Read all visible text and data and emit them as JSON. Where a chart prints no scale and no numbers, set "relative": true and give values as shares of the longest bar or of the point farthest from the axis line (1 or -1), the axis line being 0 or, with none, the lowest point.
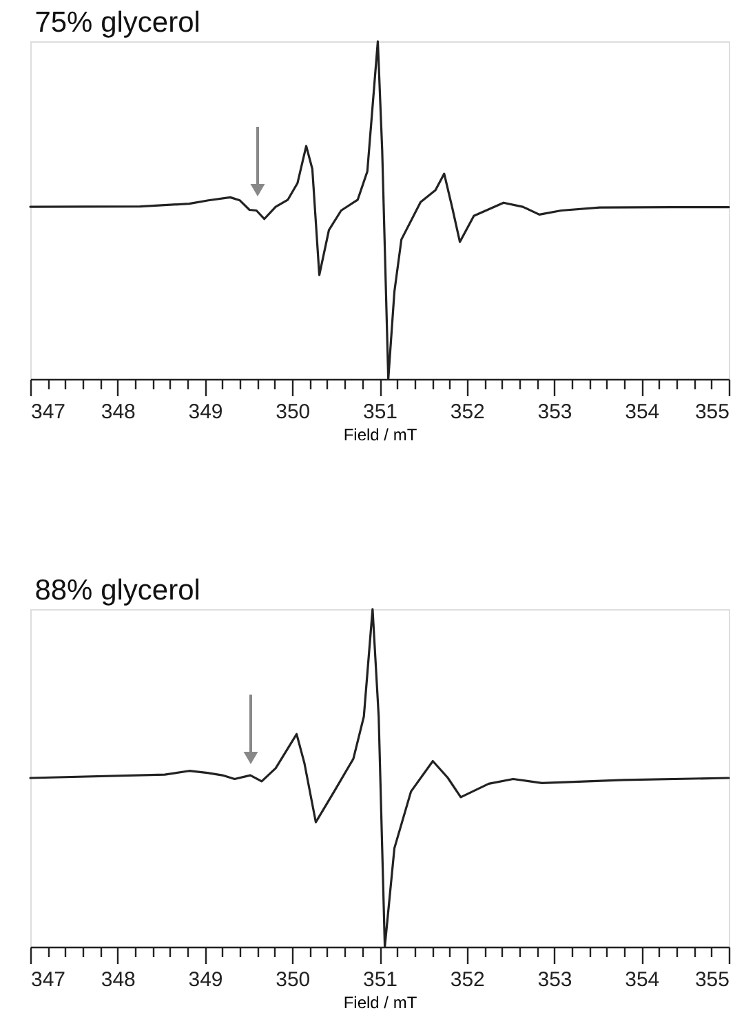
{
  "chart_data": [
    {
      "type": "line",
      "title": "75% glycerol",
      "xlabel": "Field / mT",
      "relative": true,
      "xlim": [
        347,
        355
      ],
      "xticks": [
        347,
        {
          "value": 347.2,
          "label": null
        },
        {
          "value": 347.4,
          "label": null
        },
        {
          "value": 347.6,
          "label": null
        },
        {
          "value": 347.8,
          "label": null
        },
        348,
        {
          "value": 348.2,
          "label": null
        },
        {
          "value": 348.4,
          "label": null
        },
        {
          "value": 348.6,
          "label": null
        },
        {
          "value": 348.8,
          "label": null
        },
        349,
        {
          "value": 349.2,
          "label": null
        },
        {
          "value": 349.4,
          "label": null
        },
        {
          "value": 349.6,
          "label": null
        },
        {
          "value": 349.8,
          "label": null
        },
        350,
        {
          "value": 350.2,
          "label": null
        },
        {
          "value": 350.4,
          "label": null
        },
        {
          "value": 350.6,
          "label": null
        },
        {
          "value": 350.8,
          "label": null
        },
        351,
        {
          "value": 351.2,
          "label": null
        },
        {
          "value": 351.4,
          "label": null
        },
        {
          "value": 351.6,
          "label": null
        },
        {
          "value": 351.8,
          "label": null
        },
        352,
        {
          "value": 352.2,
          "label": null
        },
        {
          "value": 352.4,
          "label": null
        },
        {
          "value": 352.6,
          "label": null
        },
        {
          "value": 352.8,
          "label": null
        },
        353,
        {
          "value": 353.2,
          "label": null
        },
        {
          "value": 353.4,
          "label": null
        },
        {
          "value": 353.6,
          "label": null
        },
        {
          "value": 353.8,
          "label": null
        },
        354,
        {
          "value": 354.2,
          "label": null
        },
        {
          "value": 354.4,
          "label": null
        },
        {
          "value": 354.6,
          "label": null
        },
        {
          "value": 354.8,
          "label": null
        },
        355
      ],
      "tick_labels": "x",
      "grid": false,
      "marker": "none",
      "line_style": "solid",
      "series": [
        {
          "color": "#222222",
          "x": [
            347.0,
            348.26,
            348.82,
            349.04,
            349.29,
            349.4,
            349.51,
            349.59,
            349.68,
            349.81,
            349.95,
            350.06,
            350.16,
            350.23,
            350.31,
            350.42,
            350.56,
            350.75,
            350.86,
            350.98,
            351.03,
            351.1,
            351.17,
            351.25,
            351.47,
            351.64,
            351.74,
            351.83,
            351.92,
            352.08,
            352.42,
            352.64,
            352.83,
            353.08,
            353.52,
            354.35,
            355.0
          ],
          "values": [
            0.51,
            0.511,
            0.519,
            0.529,
            0.538,
            0.529,
            0.501,
            0.499,
            0.474,
            0.51,
            0.531,
            0.58,
            0.69,
            0.622,
            0.308,
            0.441,
            0.499,
            0.531,
            0.615,
            1.0,
            0.678,
            0.0,
            0.259,
            0.413,
            0.524,
            0.559,
            0.608,
            0.51,
            0.406,
            0.483,
            0.522,
            0.51,
            0.487,
            0.499,
            0.508,
            0.509,
            0.509
          ]
        }
      ]
    },
    {
      "type": "line",
      "title": "88% glycerol",
      "xlabel": "Field / mT",
      "relative": true,
      "xlim": [
        347,
        355
      ],
      "xticks": [
        347,
        {
          "value": 347.2,
          "label": null
        },
        {
          "value": 347.4,
          "label": null
        },
        {
          "value": 347.6,
          "label": null
        },
        {
          "value": 347.8,
          "label": null
        },
        348,
        {
          "value": 348.2,
          "label": null
        },
        {
          "value": 348.4,
          "label": null
        },
        {
          "value": 348.6,
          "label": null
        },
        {
          "value": 348.8,
          "label": null
        },
        349,
        {
          "value": 349.2,
          "label": null
        },
        {
          "value": 349.4,
          "label": null
        },
        {
          "value": 349.6,
          "label": null
        },
        {
          "value": 349.8,
          "label": null
        },
        350,
        {
          "value": 350.2,
          "label": null
        },
        {
          "value": 350.4,
          "label": null
        },
        {
          "value": 350.6,
          "label": null
        },
        {
          "value": 350.8,
          "label": null
        },
        351,
        {
          "value": 351.2,
          "label": null
        },
        {
          "value": 351.4,
          "label": null
        },
        {
          "value": 351.6,
          "label": null
        },
        {
          "value": 351.8,
          "label": null
        },
        352,
        {
          "value": 352.2,
          "label": null
        },
        {
          "value": 352.4,
          "label": null
        },
        {
          "value": 352.6,
          "label": null
        },
        {
          "value": 352.8,
          "label": null
        },
        353,
        {
          "value": 353.2,
          "label": null
        },
        {
          "value": 353.4,
          "label": null
        },
        {
          "value": 353.6,
          "label": null
        },
        {
          "value": 353.8,
          "label": null
        },
        354,
        {
          "value": 354.2,
          "label": null
        },
        {
          "value": 354.4,
          "label": null
        },
        {
          "value": 354.6,
          "label": null
        },
        {
          "value": 354.8,
          "label": null
        },
        355
      ],
      "tick_labels": "x",
      "grid": false,
      "marker": "none",
      "line_style": "solid",
      "series": [
        {
          "color": "#222222",
          "x": [
            347.0,
            348.54,
            348.82,
            349.03,
            349.2,
            349.34,
            349.52,
            349.65,
            349.81,
            350.05,
            350.14,
            350.27,
            350.48,
            350.7,
            350.82,
            350.92,
            350.99,
            351.06,
            351.17,
            351.36,
            351.61,
            351.78,
            351.93,
            352.25,
            352.53,
            352.86,
            353.8,
            355.0
          ],
          "values": [
            0.5,
            0.51,
            0.521,
            0.515,
            0.508,
            0.497,
            0.508,
            0.49,
            0.529,
            0.63,
            0.543,
            0.369,
            0.46,
            0.557,
            0.682,
            1.0,
            0.682,
            0.0,
            0.292,
            0.46,
            0.55,
            0.501,
            0.443,
            0.483,
            0.497,
            0.485,
            0.494,
            0.5
          ]
        }
      ]
    }
  ]
}
